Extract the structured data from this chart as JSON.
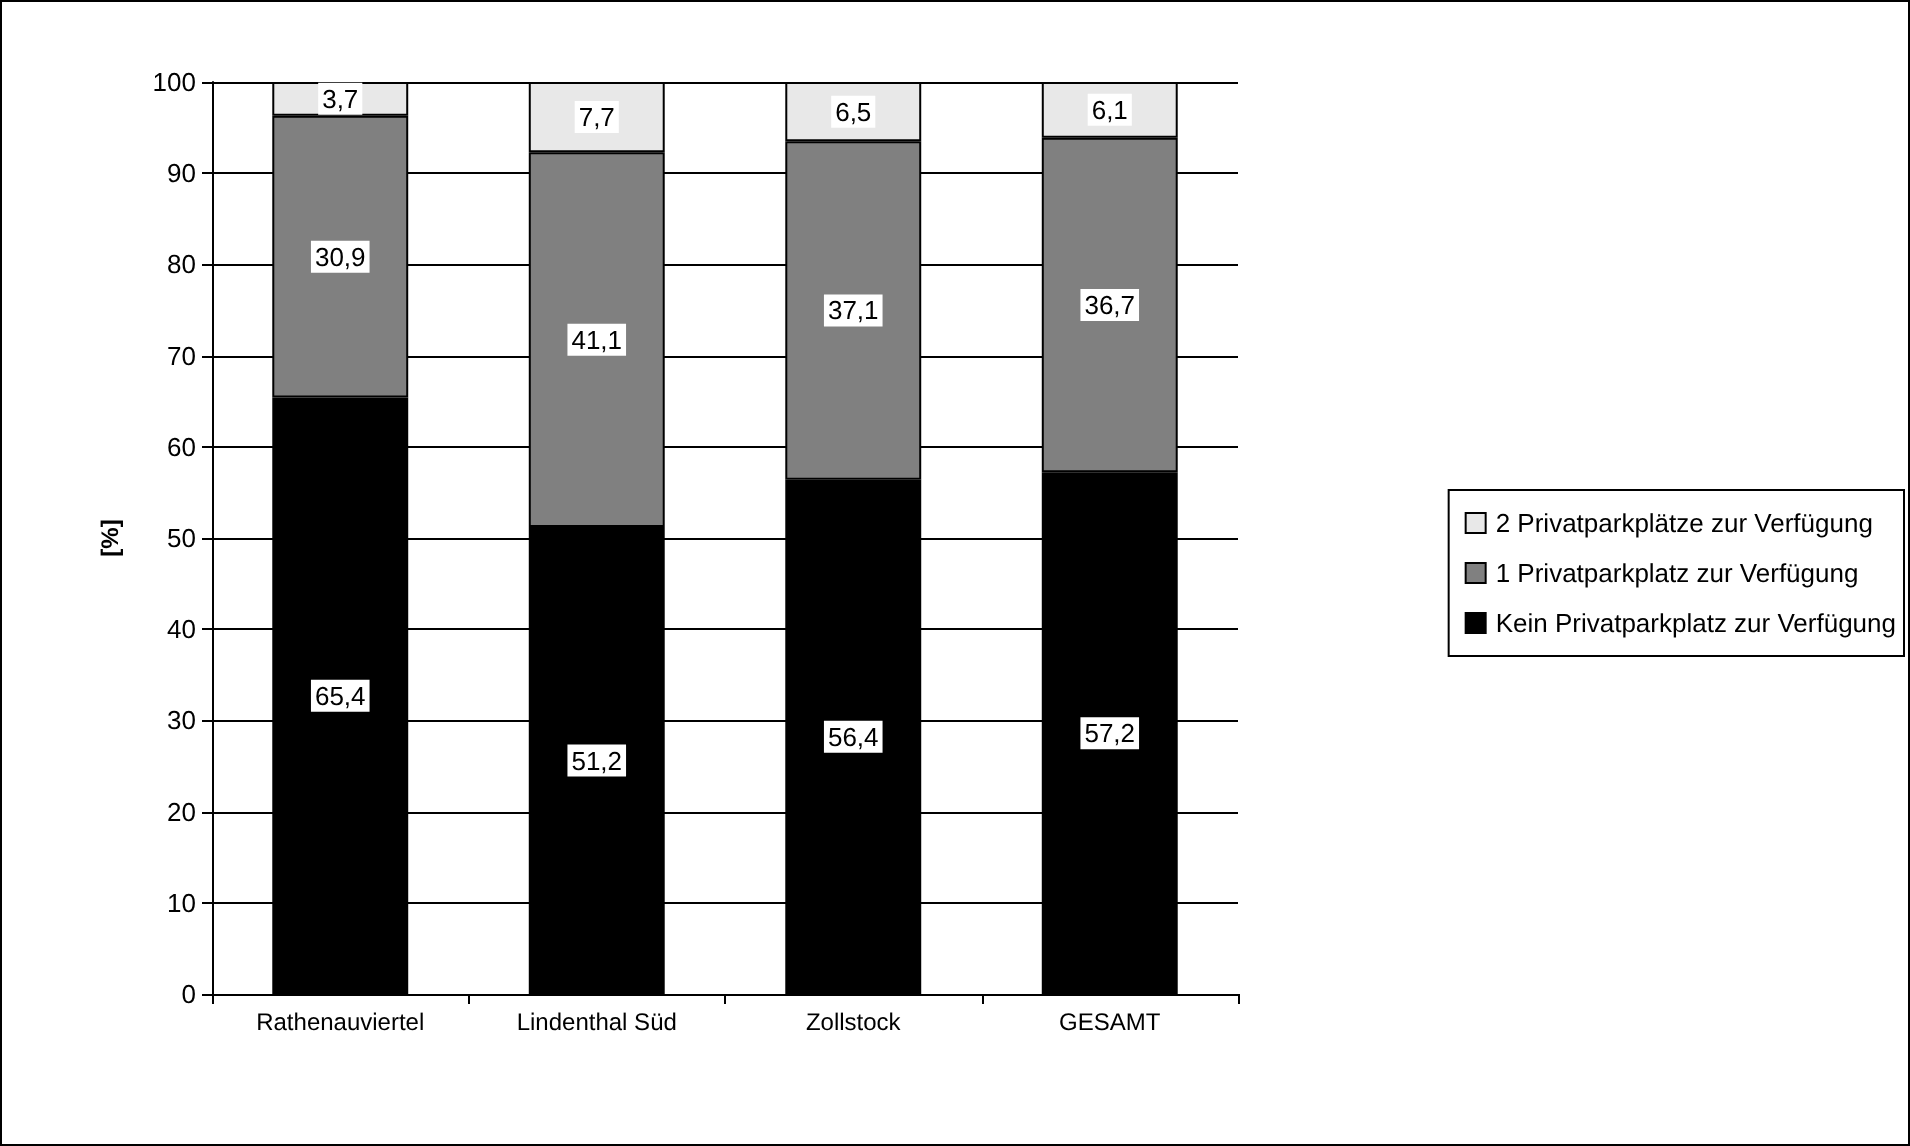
{
  "chart_data": {
    "type": "bar",
    "stacked": true,
    "ylabel": "[%]",
    "categories": [
      "Rathenauviertel",
      "Lindenthal Süd",
      "Zollstock",
      "GESAMT"
    ],
    "series": [
      {
        "name": "Kein Privatparkplatz zur Verfügung",
        "color": "#000000",
        "values": [
          65.4,
          51.2,
          56.4,
          57.2
        ],
        "value_labels": [
          "65,4",
          "51,2",
          "56,4",
          "57,2"
        ]
      },
      {
        "name": "1 Privatparkplatz zur Verfügung",
        "color": "#808080",
        "values": [
          30.9,
          41.1,
          37.1,
          36.7
        ],
        "value_labels": [
          "30,9",
          "41,1",
          "37,1",
          "36,7"
        ]
      },
      {
        "name": "2 Privatparkplätze zur Verfügung",
        "color": "#e8e8e8",
        "values": [
          3.7,
          7.7,
          6.5,
          6.1
        ],
        "value_labels": [
          "3,7",
          "7,7",
          "6,5",
          "6,1"
        ]
      }
    ],
    "ylim": [
      0,
      100
    ],
    "yticks": [
      0,
      10,
      20,
      30,
      40,
      50,
      60,
      70,
      80,
      90,
      100
    ],
    "grid": "y",
    "legend": "right"
  }
}
